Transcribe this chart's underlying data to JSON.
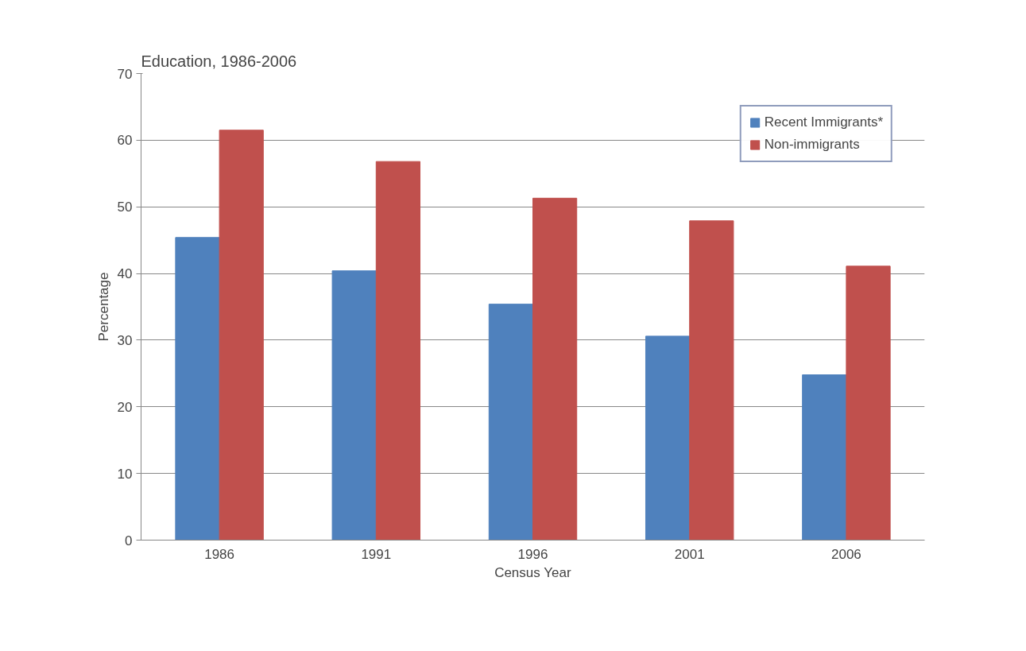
{
  "chart_data": {
    "type": "bar",
    "title": "Education, 1986-2006",
    "xlabel": "Census Year",
    "ylabel": "Percentage",
    "categories": [
      "1986",
      "1991",
      "1996",
      "2001",
      "2006"
    ],
    "series": [
      {
        "name": "Recent Immigrants*",
        "color": "#4f81bd",
        "values": [
          45.4,
          40.4,
          35.4,
          30.6,
          24.8
        ]
      },
      {
        "name": "Non-immigrants",
        "color": "#c0504d",
        "values": [
          61.5,
          56.8,
          51.3,
          47.9,
          41.1
        ]
      }
    ],
    "ylim": [
      0,
      70
    ],
    "yticks": [
      0,
      10,
      20,
      30,
      40,
      50,
      60,
      70
    ],
    "grid": "y",
    "legend": "top right"
  }
}
